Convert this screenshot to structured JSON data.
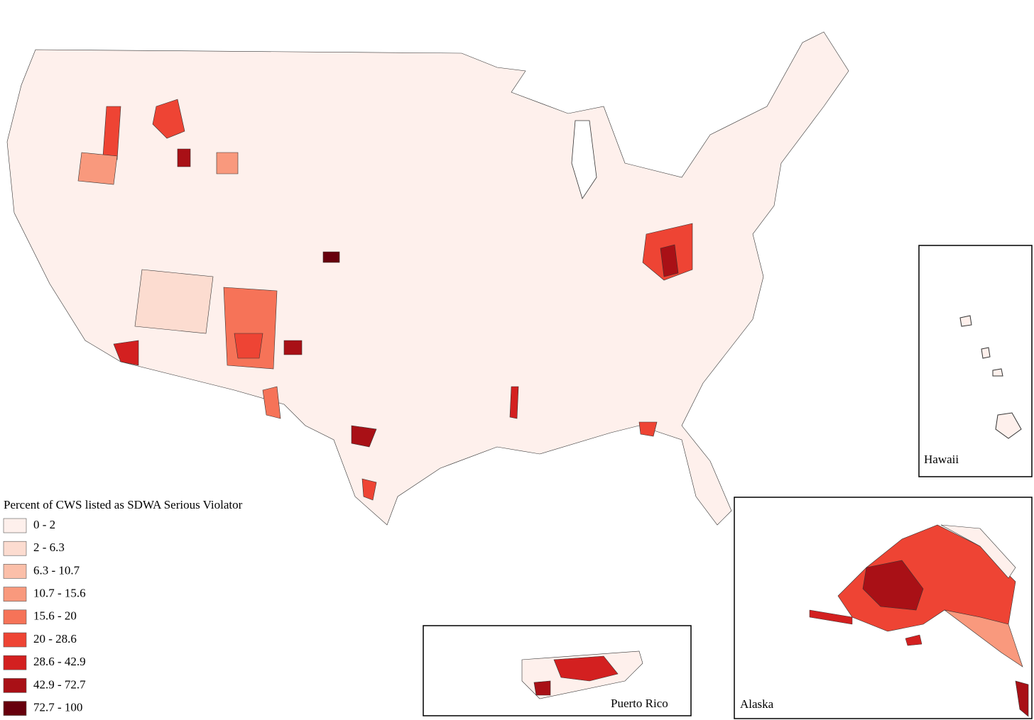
{
  "legend": {
    "title": "Percent of CWS listed as SDWA Serious Violator",
    "items": [
      {
        "label": "0 - 2",
        "color": "#fef0ec"
      },
      {
        "label": "2 - 6.3",
        "color": "#fcdcd0"
      },
      {
        "label": "6.3 - 10.7",
        "color": "#fbbfa9"
      },
      {
        "label": "10.7 - 15.6",
        "color": "#f9997d"
      },
      {
        "label": "15.6 - 20",
        "color": "#f67358"
      },
      {
        "label": "20 - 28.6",
        "color": "#ee4434"
      },
      {
        "label": "28.6 - 42.9",
        "color": "#d32020"
      },
      {
        "label": "42.9 - 72.7",
        "color": "#a91016"
      },
      {
        "label": "72.7 - 100",
        "color": "#67000d"
      }
    ]
  },
  "insets": {
    "hawaii": "Hawaii",
    "alaska": "Alaska",
    "puerto_rico": "Puerto Rico"
  }
}
